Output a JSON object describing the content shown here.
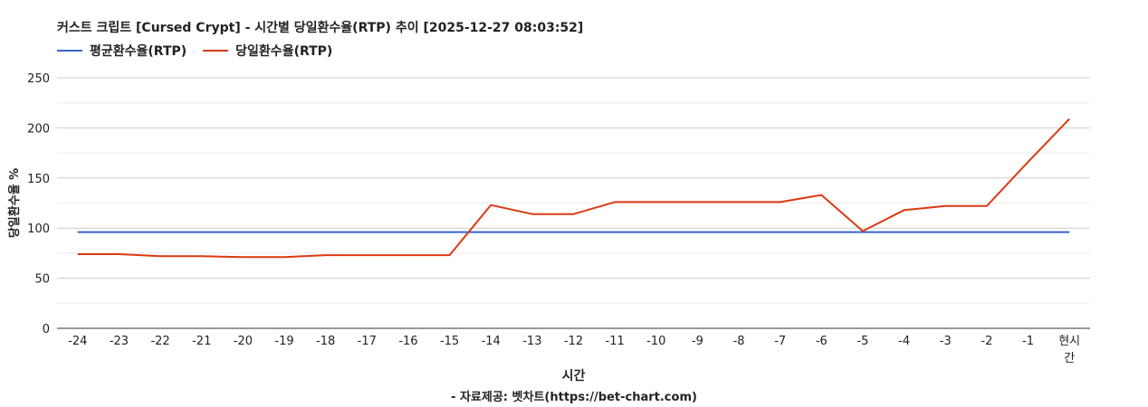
{
  "chart_data": {
    "type": "line",
    "title": "커스트 크립트 [Cursed Crypt] - 시간별 당일환수율(RTP) 추이 [2025-12-27 08:03:52]",
    "xlabel": "시간",
    "ylabel": "당일환수율 %",
    "categories": [
      "-24",
      "-23",
      "-22",
      "-21",
      "-20",
      "-19",
      "-18",
      "-17",
      "-16",
      "-15",
      "-14",
      "-13",
      "-12",
      "-11",
      "-10",
      "-9",
      "-8",
      "-7",
      "-6",
      "-5",
      "-4",
      "-3",
      "-2",
      "-1",
      "현시간"
    ],
    "ylim": [
      0,
      250
    ],
    "yticks": [
      0,
      50,
      100,
      150,
      200,
      250
    ],
    "grid": true,
    "legend_position": "top-left",
    "series": [
      {
        "name": "평균환수율(RTP)",
        "color": "#3366cc",
        "values": [
          96,
          96,
          96,
          96,
          96,
          96,
          96,
          96,
          96,
          96,
          96,
          96,
          96,
          96,
          96,
          96,
          96,
          96,
          96,
          96,
          96,
          96,
          96,
          96,
          96
        ]
      },
      {
        "name": "당일환수율(RTP)",
        "color": "#dc3912",
        "values": [
          74,
          74,
          72,
          72,
          71,
          71,
          73,
          73,
          73,
          73,
          123,
          114,
          114,
          126,
          126,
          126,
          126,
          126,
          133,
          97,
          118,
          122,
          122,
          166,
          209
        ]
      }
    ]
  },
  "footer": {
    "credit": "- 자료제공: 벳차트(https://bet-chart.com)"
  }
}
